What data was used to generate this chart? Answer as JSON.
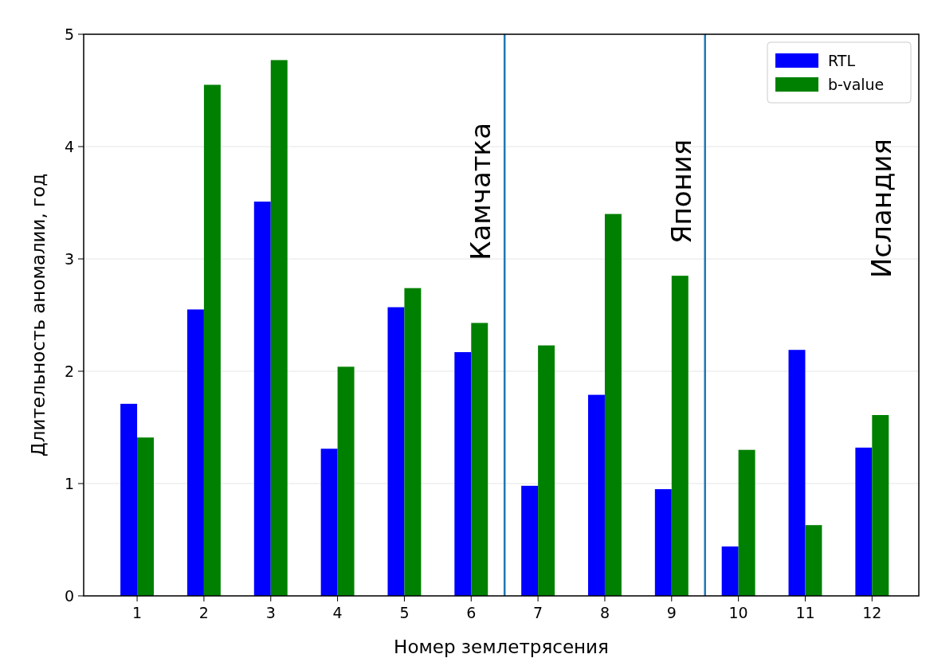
{
  "chart_data": {
    "type": "bar",
    "xlabel": "Номер землетрясения",
    "ylabel": "Длительность аномалии, год",
    "x": [
      1,
      2,
      3,
      4,
      5,
      6,
      7,
      8,
      9,
      10,
      11,
      12
    ],
    "series": [
      {
        "name": "RTL",
        "color": "#0000ff",
        "values": [
          1.71,
          2.55,
          3.51,
          1.31,
          2.57,
          2.17,
          0.98,
          1.79,
          0.95,
          0.44,
          2.19,
          1.32
        ]
      },
      {
        "name": "b-value",
        "color": "#008000",
        "values": [
          1.41,
          4.55,
          4.77,
          2.04,
          2.74,
          2.43,
          2.23,
          3.4,
          2.85,
          1.3,
          0.63,
          1.61
        ]
      }
    ],
    "xlim": [
      0.2,
      12.7
    ],
    "xticks": [
      1,
      2,
      3,
      4,
      5,
      6,
      7,
      8,
      9,
      10,
      11,
      12
    ],
    "ylim": [
      0,
      5
    ],
    "yticks": [
      0,
      1,
      2,
      3,
      4,
      5
    ],
    "grid": "y",
    "legend": "top right",
    "ref_lines": [
      {
        "axis": "x",
        "value": 6.5,
        "color": "#1f77b4",
        "label": "Камчатка"
      },
      {
        "axis": "x",
        "value": 9.5,
        "color": "#1f77b4",
        "label": "Япония"
      }
    ],
    "annotations": [
      "Исландия"
    ]
  }
}
